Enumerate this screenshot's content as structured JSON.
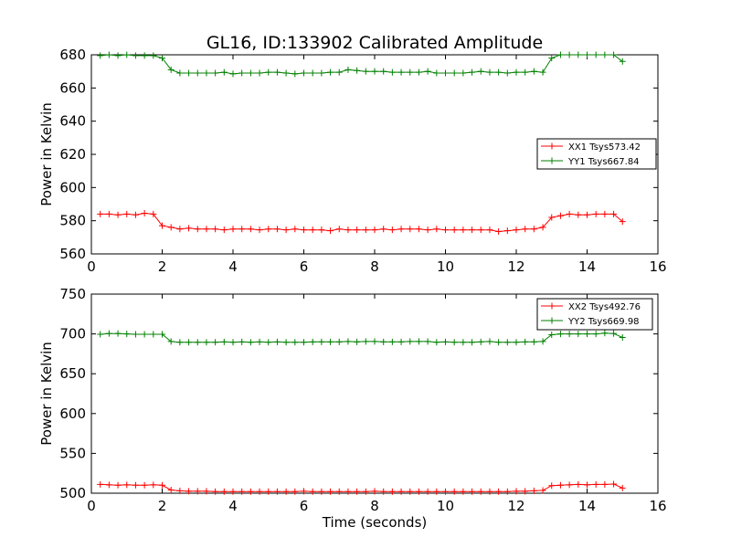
{
  "chart_data": [
    {
      "type": "line",
      "title": "GL16, ID:133902 Calibrated Amplitude",
      "xlabel": "",
      "ylabel": "Power in Kelvin",
      "xlim": [
        0,
        16
      ],
      "ylim": [
        560,
        680
      ],
      "xticks": [
        "0",
        "2",
        "4",
        "6",
        "8",
        "10",
        "12",
        "14",
        "16"
      ],
      "yticks": [
        "560",
        "580",
        "600",
        "620",
        "640",
        "660",
        "680"
      ],
      "grid": false,
      "legend": "center-right",
      "x": [
        0.25,
        0.5,
        0.75,
        1.0,
        1.25,
        1.5,
        1.75,
        2.0,
        2.25,
        2.5,
        2.75,
        3.0,
        3.25,
        3.5,
        3.75,
        4.0,
        4.25,
        4.5,
        4.75,
        5.0,
        5.25,
        5.5,
        5.75,
        6.0,
        6.25,
        6.5,
        6.75,
        7.0,
        7.25,
        7.5,
        7.75,
        8.0,
        8.25,
        8.5,
        8.75,
        9.0,
        9.25,
        9.5,
        9.75,
        10.0,
        10.25,
        10.5,
        10.75,
        11.0,
        11.25,
        11.5,
        11.75,
        12.0,
        12.25,
        12.5,
        12.75,
        13.0,
        13.25,
        13.5,
        13.75,
        14.0,
        14.25,
        14.5,
        14.75,
        15.0
      ],
      "series": [
        {
          "name": "XX1 Tsys573.42",
          "color": "#ff0000",
          "values": [
            584,
            584,
            583.5,
            584,
            583.5,
            584.5,
            584,
            577,
            576,
            575,
            575.5,
            575,
            575,
            575,
            574.5,
            575,
            575,
            575,
            574.5,
            575,
            575,
            574.5,
            575,
            574.5,
            574.5,
            574.5,
            574,
            575,
            574.5,
            574.5,
            574.5,
            574.5,
            575,
            574.5,
            575,
            575,
            575,
            574.5,
            575,
            574.5,
            574.5,
            574.5,
            574.5,
            574.5,
            574.5,
            573.5,
            574,
            574.5,
            575,
            575,
            576,
            582,
            583,
            584,
            583.5,
            583.5,
            584,
            584,
            584,
            579.5
          ]
        },
        {
          "name": "YY1 Tsys667.84",
          "color": "#008000",
          "values": [
            679.5,
            680,
            679.5,
            680,
            679.5,
            679.5,
            679.5,
            678,
            671,
            669,
            669,
            669,
            669,
            669,
            669.5,
            668.5,
            669,
            669,
            669,
            669.5,
            669.5,
            669,
            668.5,
            669,
            669,
            669,
            669.5,
            669.5,
            671,
            670.5,
            670,
            670,
            670,
            669.5,
            669.5,
            669.5,
            669.5,
            670,
            669,
            669,
            669,
            669,
            669.5,
            670,
            669.5,
            669.5,
            669,
            669.5,
            669.5,
            670,
            669.5,
            678,
            680,
            680,
            680,
            680,
            680,
            680,
            680,
            676
          ]
        }
      ]
    },
    {
      "type": "line",
      "title": "",
      "xlabel": "Time (seconds)",
      "ylabel": "Power in Kelvin",
      "xlim": [
        0,
        16
      ],
      "ylim": [
        500,
        750
      ],
      "xticks": [
        "0",
        "2",
        "4",
        "6",
        "8",
        "10",
        "12",
        "14",
        "16"
      ],
      "yticks": [
        "500",
        "550",
        "600",
        "650",
        "700",
        "750"
      ],
      "grid": false,
      "legend": "top-right",
      "x": [
        0.25,
        0.5,
        0.75,
        1.0,
        1.25,
        1.5,
        1.75,
        2.0,
        2.25,
        2.5,
        2.75,
        3.0,
        3.25,
        3.5,
        3.75,
        4.0,
        4.25,
        4.5,
        4.75,
        5.0,
        5.25,
        5.5,
        5.75,
        6.0,
        6.25,
        6.5,
        6.75,
        7.0,
        7.25,
        7.5,
        7.75,
        8.0,
        8.25,
        8.5,
        8.75,
        9.0,
        9.25,
        9.5,
        9.75,
        10.0,
        10.25,
        10.5,
        10.75,
        11.0,
        11.25,
        11.5,
        11.75,
        12.0,
        12.25,
        12.5,
        12.75,
        13.0,
        13.25,
        13.5,
        13.75,
        14.0,
        14.25,
        14.5,
        14.75,
        15.0
      ],
      "series": [
        {
          "name": "XX2 Tsys492.76",
          "color": "#ff0000",
          "values": [
            511,
            510.5,
            510,
            510.5,
            510,
            510,
            510.5,
            510,
            504,
            503,
            502.5,
            502.5,
            502.5,
            502,
            502,
            502,
            502,
            502,
            502,
            502,
            502,
            502,
            502,
            502.5,
            502,
            502,
            502,
            502,
            502,
            502,
            502,
            502.5,
            502,
            502,
            502,
            502,
            502,
            502,
            502,
            502,
            502,
            502,
            502,
            502,
            502,
            502,
            502,
            502.5,
            502.5,
            503,
            503.5,
            509.5,
            510,
            510.5,
            511,
            510.5,
            511,
            511,
            511.5,
            506.5
          ]
        },
        {
          "name": "YY2 Tsys669.98",
          "color": "#008000",
          "values": [
            699.5,
            700.5,
            700.5,
            700,
            699.5,
            699.5,
            699.5,
            699.5,
            690.5,
            689.5,
            689.5,
            689.5,
            689.5,
            689.5,
            690,
            689.5,
            690,
            689.5,
            690,
            689.5,
            690,
            689.5,
            689.5,
            689.5,
            690,
            690,
            690,
            690,
            690.5,
            690,
            690.5,
            690.5,
            690,
            690,
            690,
            690.5,
            690.5,
            690.5,
            689.5,
            690,
            689.5,
            689.5,
            689.5,
            690,
            690.5,
            689.5,
            689.5,
            689.5,
            690,
            690,
            690.5,
            699,
            700,
            700,
            700,
            700,
            700,
            701,
            700.5,
            695.5
          ]
        }
      ]
    }
  ]
}
